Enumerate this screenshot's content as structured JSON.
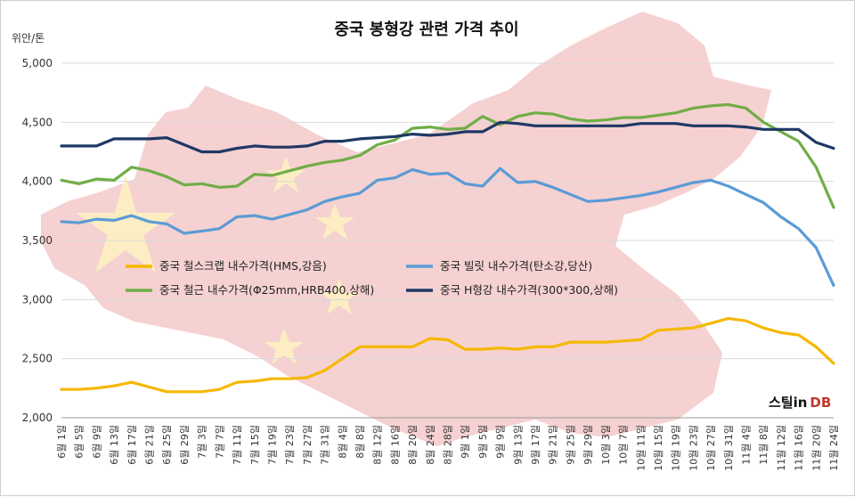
{
  "chart_data": {
    "type": "line",
    "title": "중국 봉형강 관련 가격 추이",
    "ylabel": "위안/톤",
    "xlabel": "",
    "ylim": [
      2000,
      5000
    ],
    "yticks": [
      "2,000",
      "2,500",
      "3,000",
      "3,500",
      "4,000",
      "4,500",
      "5,000"
    ],
    "ytick_values": [
      2000,
      2500,
      3000,
      3500,
      4000,
      4500,
      5000
    ],
    "x": [
      "6월 1일",
      "6월 5일",
      "6월 9일",
      "6월 13일",
      "6월 17일",
      "6월 21일",
      "6월 25일",
      "6월 29일",
      "7월 3일",
      "7월 7일",
      "7월 11일",
      "7월 15일",
      "7월 19일",
      "7월 23일",
      "7월 27일",
      "7월 31일",
      "8월 4일",
      "8월 8일",
      "8월 12일",
      "8월 16일",
      "8월 20일",
      "8월 24일",
      "8월 28일",
      "9월 1일",
      "9월 5일",
      "9월 9일",
      "9월 13일",
      "9월 17일",
      "9월 21일",
      "9월 25일",
      "9월 29일",
      "10월 3일",
      "10월 7일",
      "10월 11일",
      "10월 15일",
      "10월 19일",
      "10월 23일",
      "10월 27일",
      "10월 31일",
      "11월 4일",
      "11월 8일",
      "11월 12일",
      "11월 16일",
      "11월 20일",
      "11월 24일"
    ],
    "grid": true,
    "legend_position": "center-left",
    "series": [
      {
        "name": "중국 철스크랩 내수가격(HMS,강음)",
        "color": "#F5B800",
        "values": [
          2240,
          2240,
          2250,
          2270,
          2300,
          2260,
          2220,
          2220,
          2220,
          2240,
          2300,
          2310,
          2330,
          2330,
          2340,
          2400,
          2500,
          2600,
          2600,
          2600,
          2600,
          2670,
          2660,
          2580,
          2580,
          2590,
          2580,
          2600,
          2600,
          2640,
          2640,
          2640,
          2650,
          2660,
          2740,
          2750,
          2760,
          2800,
          2840,
          2820,
          2760,
          2720,
          2700,
          2600,
          2460
        ]
      },
      {
        "name": "중국 빌릿 내수가격(탄소강,당산)",
        "color": "#5B9BD5",
        "values": [
          3660,
          3650,
          3680,
          3670,
          3710,
          3660,
          3640,
          3560,
          3580,
          3600,
          3700,
          3710,
          3680,
          3720,
          3760,
          3830,
          3870,
          3900,
          4010,
          4030,
          4100,
          4060,
          4070,
          3980,
          3960,
          4110,
          3990,
          4000,
          3950,
          3890,
          3830,
          3840,
          3860,
          3880,
          3910,
          3950,
          3990,
          4010,
          3960,
          3890,
          3820,
          3700,
          3600,
          3440,
          3120
        ]
      },
      {
        "name": "중국 철근 내수가격(Φ25mm,HRB400,상해)",
        "color": "#70AD47",
        "values": [
          4010,
          3980,
          4020,
          4010,
          4120,
          4090,
          4040,
          3970,
          3980,
          3950,
          3960,
          4060,
          4050,
          4090,
          4130,
          4160,
          4180,
          4220,
          4310,
          4350,
          4450,
          4460,
          4440,
          4450,
          4550,
          4480,
          4550,
          4580,
          4570,
          4530,
          4510,
          4520,
          4540,
          4540,
          4560,
          4580,
          4620,
          4640,
          4650,
          4620,
          4500,
          4420,
          4340,
          4120,
          3780
        ]
      },
      {
        "name": "중국 H형강 내수가격(300*300,상해)",
        "color": "#1F3864",
        "values": [
          4300,
          4300,
          4300,
          4360,
          4360,
          4360,
          4370,
          4310,
          4250,
          4250,
          4280,
          4300,
          4290,
          4290,
          4300,
          4340,
          4340,
          4360,
          4370,
          4380,
          4400,
          4390,
          4400,
          4420,
          4420,
          4500,
          4490,
          4470,
          4470,
          4470,
          4470,
          4470,
          4470,
          4490,
          4490,
          4490,
          4470,
          4470,
          4470,
          4460,
          4440,
          4440,
          4440,
          4330,
          4280
        ]
      }
    ]
  },
  "watermark": {
    "part1": "스틸in",
    "part2": "DB"
  }
}
